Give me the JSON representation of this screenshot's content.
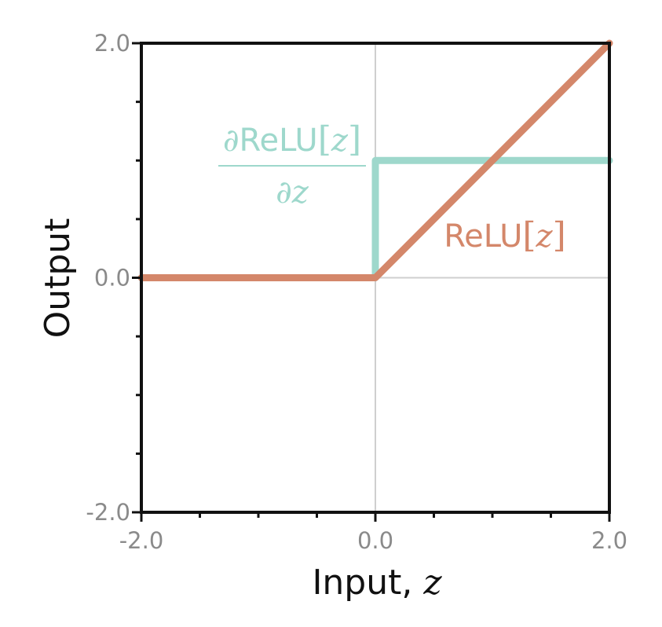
{
  "chart_data": {
    "type": "line",
    "xlabel": "Input,",
    "xlabel_var": "z",
    "ylabel": "Output",
    "xlim": [
      -2.0,
      2.0
    ],
    "ylim": [
      -2.0,
      2.0
    ],
    "xticks": [
      -2.0,
      0.0,
      2.0
    ],
    "xtick_labels": [
      "-2.0",
      "0.0",
      "2.0"
    ],
    "yticks": [
      -2.0,
      0.0,
      2.0
    ],
    "ytick_labels": [
      "-2.0",
      "0.0",
      "2.0"
    ],
    "grid": "zero-lines",
    "series": [
      {
        "label_parts": {
          "prefix": "∂",
          "text": "ReLU",
          "open": "[",
          "var": "z",
          "close": "]",
          "denominator": "∂z"
        },
        "color": "#9ed8cc",
        "x": [
          -2.0,
          0.0,
          0.0,
          2.0
        ],
        "y": [
          0.0,
          0.0,
          1.0,
          1.0
        ]
      },
      {
        "label_parts": {
          "text": "ReLU",
          "open": "[",
          "var": "z",
          "close": "]"
        },
        "color": "#d4876a",
        "x": [
          -2.0,
          0.0,
          2.0
        ],
        "y": [
          0.0,
          0.0,
          2.0
        ]
      }
    ]
  }
}
